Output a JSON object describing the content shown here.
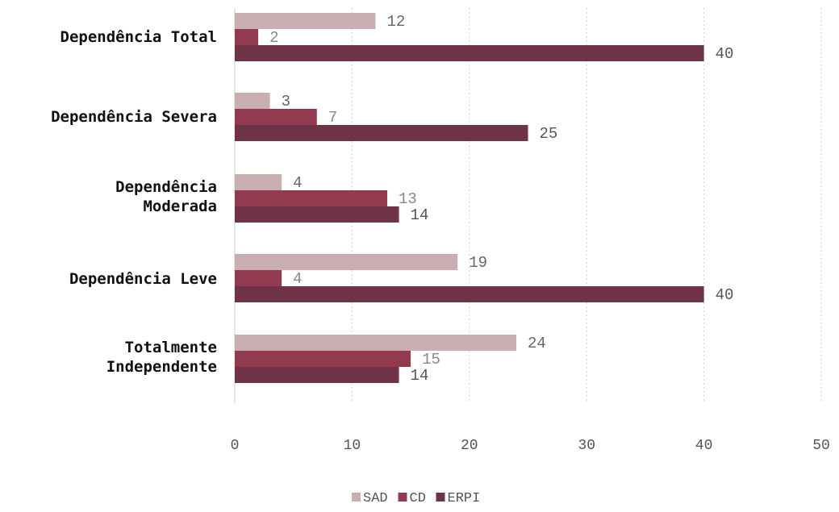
{
  "chart_data": {
    "type": "bar",
    "orientation": "horizontal",
    "categories": [
      "Dependência Total",
      "Dependência Severa",
      "Dependência Moderada",
      "Dependência Leve",
      "Totalmente Independente"
    ],
    "series": [
      {
        "name": "SAD",
        "color": "#c9aeb2",
        "values": [
          12,
          3,
          4,
          19,
          24
        ]
      },
      {
        "name": "CD",
        "color": "#923b50",
        "values": [
          2,
          7,
          13,
          4,
          15
        ]
      },
      {
        "name": "ERPI",
        "color": "#6e3346",
        "values": [
          40,
          25,
          14,
          40,
          14
        ]
      }
    ],
    "xlim": [
      0,
      50
    ],
    "xticks": [
      "0",
      "10",
      "20",
      "30",
      "40",
      "50"
    ],
    "grid": true,
    "legend_position": "bottom-center",
    "title": "",
    "xlabel": "",
    "ylabel": ""
  }
}
